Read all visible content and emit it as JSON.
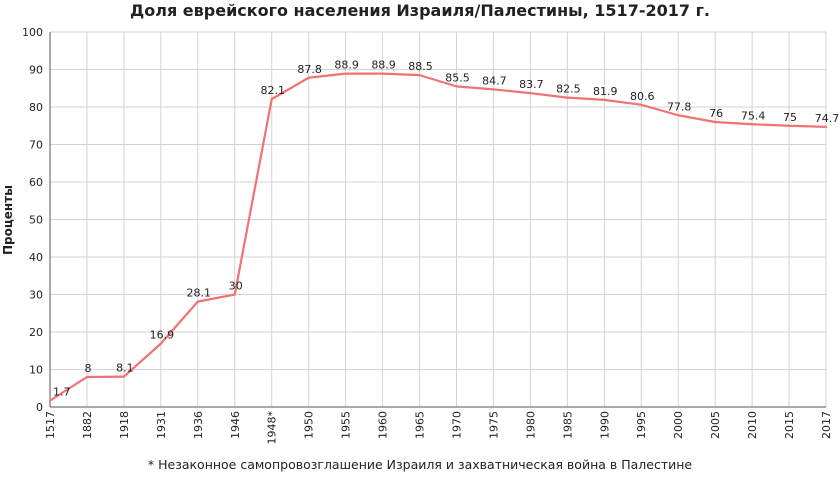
{
  "chart_data": {
    "type": "line",
    "title": "Доля еврейского населения Израиля/Палестины, 1517-2017 г.",
    "ylabel": "Проценты",
    "xlabel": "",
    "footnote": "* Незаконное самопровозглашение Израиля и захватническая война в Палестине",
    "categories": [
      "1517",
      "1882",
      "1918",
      "1931",
      "1936",
      "1946",
      "1948*",
      "1950",
      "1955",
      "1960",
      "1965",
      "1970",
      "1975",
      "1980",
      "1985",
      "1990",
      "1995",
      "2000",
      "2005",
      "2010",
      "2015",
      "2017"
    ],
    "series": [
      {
        "values": [
          1.7,
          8,
          8.1,
          16.9,
          28.1,
          30,
          82.1,
          87.8,
          88.9,
          88.9,
          88.5,
          85.5,
          84.7,
          83.7,
          82.5,
          81.9,
          80.6,
          77.8,
          76,
          75.4,
          75,
          74.7
        ]
      }
    ],
    "data_labels": [
      "1.7",
      "8",
      "8.1",
      "16.9",
      "28.1",
      "30",
      "82.1",
      "87.8",
      "88.9",
      "88.9",
      "88.5",
      "85.5",
      "84.7",
      "83.7",
      "82.5",
      "81.9",
      "80.6",
      "77.8",
      "76",
      "75.4",
      "75",
      "74.7"
    ],
    "ylim": [
      0,
      100
    ],
    "yticks": [
      0,
      10,
      20,
      30,
      40,
      50,
      60,
      70,
      80,
      90,
      100
    ],
    "grid": true,
    "line_color": "#f07373",
    "grid_color": "#d3d3d3",
    "legend": "none"
  }
}
